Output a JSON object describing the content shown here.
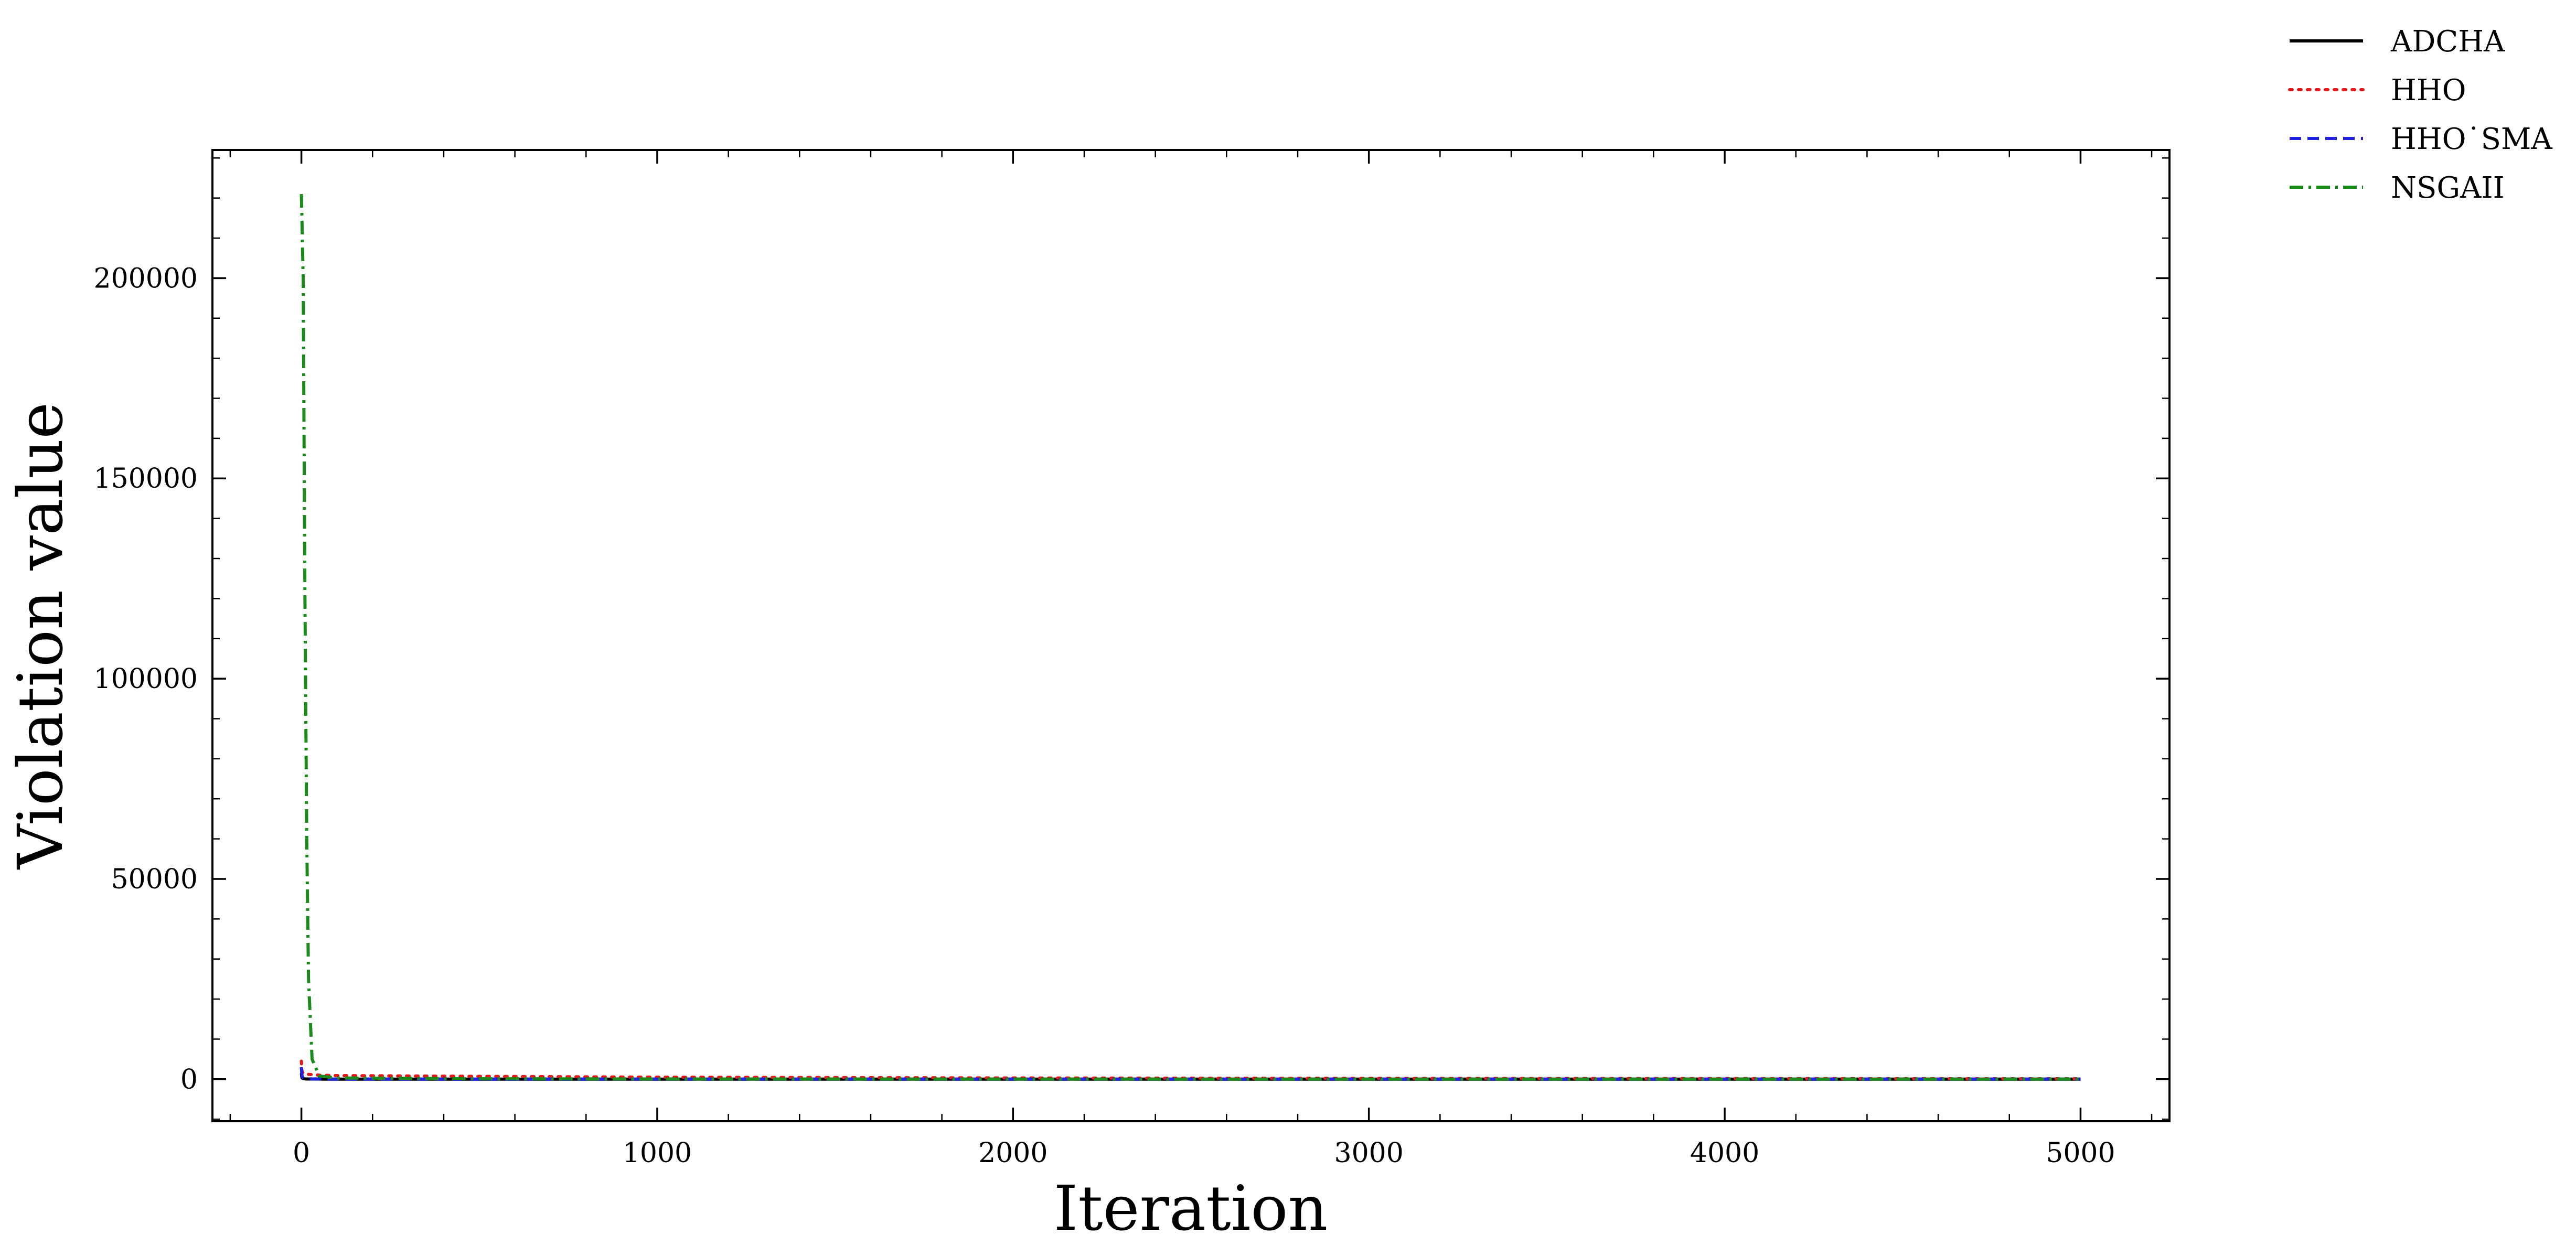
{
  "chart_data": {
    "type": "line",
    "title": "",
    "xlabel": "Iteration",
    "ylabel": "Violation value",
    "xlim": [
      -250,
      5250
    ],
    "ylim": [
      -10500,
      232000
    ],
    "xticks": [
      0,
      1000,
      2000,
      3000,
      4000,
      5000
    ],
    "yticks": [
      0,
      50000,
      100000,
      150000,
      200000
    ],
    "x_minor_step": 200,
    "y_minor_step": 10000,
    "grid": false,
    "legend_position": "outside top-right",
    "series": [
      {
        "name": "ADCHA",
        "color": "#000000",
        "dash": "solid",
        "x": [
          0,
          1,
          2,
          5,
          10,
          20,
          50,
          100,
          500,
          1000,
          2000,
          3000,
          4000,
          5000
        ],
        "y": [
          1500,
          600,
          300,
          150,
          80,
          40,
          20,
          10,
          5,
          3,
          2,
          1,
          1,
          1
        ]
      },
      {
        "name": "HHO",
        "color": "#e41a1c",
        "dash": "dotted",
        "x": [
          0,
          1,
          2,
          5,
          10,
          20,
          50,
          100,
          500,
          1000,
          2000,
          3000,
          4000,
          5000
        ],
        "y": [
          4500,
          2500,
          2000,
          1500,
          1300,
          1200,
          1000,
          900,
          700,
          500,
          300,
          200,
          150,
          100
        ]
      },
      {
        "name": "HHO_SMA",
        "label": "HHO˙SMA",
        "color": "#1f1fe0",
        "dash": "dashed",
        "x": [
          0,
          1,
          2,
          5,
          10,
          20,
          50,
          100,
          500,
          1000,
          2000,
          3000,
          4000,
          5000
        ],
        "y": [
          3000,
          1500,
          800,
          300,
          150,
          80,
          40,
          20,
          10,
          5,
          3,
          2,
          1,
          1
        ]
      },
      {
        "name": "NSGAII",
        "color": "#1a8a1a",
        "dash": "dashdot",
        "x": [
          0,
          5,
          10,
          15,
          20,
          30,
          50,
          100,
          500,
          1000,
          2000,
          3000,
          4000,
          5000
        ],
        "y": [
          221000,
          200000,
          120000,
          60000,
          25000,
          5000,
          800,
          300,
          100,
          50,
          20,
          10,
          5,
          2
        ]
      }
    ]
  }
}
